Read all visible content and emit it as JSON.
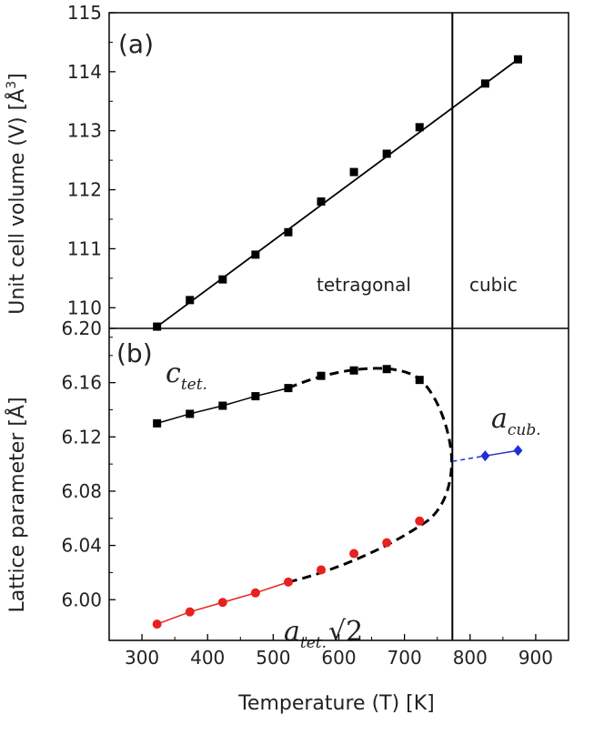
{
  "chart_data": [
    {
      "panel_label": "(a)",
      "type": "line",
      "xlabel": "Temperature (T) [K]",
      "ylabel": "Unit cell volume (V)  [Å³]",
      "xlim": [
        250,
        950
      ],
      "ylim": [
        109.65,
        115
      ],
      "yticks": [
        110,
        111,
        112,
        113,
        114,
        115
      ],
      "series": [
        {
          "name": "V",
          "marker": "square",
          "color": "#000000",
          "x": [
            323,
            373,
            423,
            473,
            523,
            573,
            623,
            673,
            723,
            823,
            873
          ],
          "y": [
            109.68,
            110.13,
            110.48,
            110.9,
            111.28,
            111.8,
            112.3,
            112.61,
            113.06,
            113.8,
            114.21
          ]
        }
      ],
      "fit_line": {
        "x": [
          323,
          873
        ],
        "y": [
          109.68,
          114.21
        ]
      },
      "phase_boundary_x": 773,
      "region_labels": [
        "tetragonal",
        "cubic"
      ]
    },
    {
      "panel_label": "(b)",
      "type": "line",
      "xlabel": "Temperature (T) [K]",
      "ylabel": "Lattice parameter [Å]",
      "xlim": [
        250,
        950
      ],
      "ylim": [
        5.97,
        6.2
      ],
      "yticks": [
        6.0,
        6.04,
        6.08,
        6.12,
        6.16,
        6.2
      ],
      "ytick_labels": [
        "6.00",
        "6.04",
        "6.08",
        "6.12",
        "6.16",
        "6.20"
      ],
      "xticks": [
        300,
        400,
        500,
        600,
        700,
        800,
        900
      ],
      "series": [
        {
          "name": "c_tet.",
          "marker": "square",
          "color": "#000000",
          "x": [
            323,
            373,
            423,
            473,
            523,
            573,
            623,
            673,
            723
          ],
          "y": [
            6.13,
            6.137,
            6.143,
            6.15,
            6.156,
            6.165,
            6.169,
            6.17,
            6.162
          ]
        },
        {
          "name": "a_tet.√2",
          "marker": "circle",
          "color": "#e8201f",
          "x": [
            323,
            373,
            423,
            473,
            523,
            573,
            623,
            673,
            723
          ],
          "y": [
            5.982,
            5.991,
            5.998,
            6.005,
            6.013,
            6.022,
            6.034,
            6.042,
            6.058
          ]
        },
        {
          "name": "a_cub.",
          "marker": "diamond",
          "color": "#1f2fd8",
          "x": [
            823,
            873
          ],
          "y": [
            6.106,
            6.11
          ]
        }
      ],
      "phase_boundary_x": 773,
      "series_labels": {
        "c": {
          "main": "c",
          "sub": "tet."
        },
        "a_tet": {
          "main": "a",
          "sub": "tet.",
          "tail": "√2"
        },
        "a_cub": {
          "main": "a",
          "sub": "cub."
        }
      }
    }
  ]
}
